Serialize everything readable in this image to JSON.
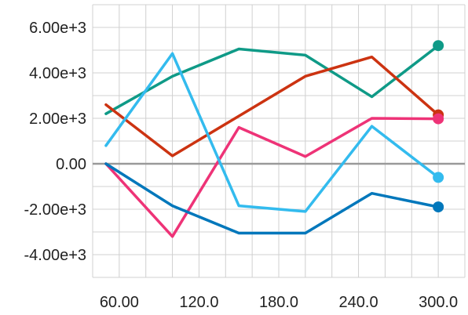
{
  "chart_data": {
    "type": "line",
    "x": [
      50,
      100,
      150,
      200,
      250,
      300
    ],
    "xlim": [
      40,
      320
    ],
    "ylim": [
      -5000,
      7000
    ],
    "x_ticks": [
      60,
      120,
      180,
      240,
      300
    ],
    "x_tick_labels": [
      "60.00",
      "120.0",
      "180.0",
      "240.0",
      "300.0"
    ],
    "y_ticks": [
      6000,
      4000,
      2000,
      0,
      -2000,
      -4000
    ],
    "y_tick_labels": [
      "6.00e+3",
      "4.00e+3",
      "2.00e+3",
      "0.00",
      "-2.00e+3",
      "-4.00e+3"
    ],
    "grid": true,
    "end_markers": true,
    "series": [
      {
        "color": "#0f9a87",
        "values": [
          2200,
          3850,
          5050,
          4780,
          2950,
          5200
        ]
      },
      {
        "color": "#cc3311",
        "values": [
          2600,
          350,
          2100,
          3850,
          4700,
          2150
        ]
      },
      {
        "color": "#ee3377",
        "values": [
          0,
          -3200,
          1600,
          320,
          2000,
          1980
        ]
      },
      {
        "color": "#33bbee",
        "values": [
          800,
          4850,
          -1850,
          -2100,
          1650,
          -600
        ]
      },
      {
        "color": "#0077bb",
        "values": [
          0,
          -1850,
          -3050,
          -3050,
          -1300,
          -1900
        ]
      }
    ]
  }
}
